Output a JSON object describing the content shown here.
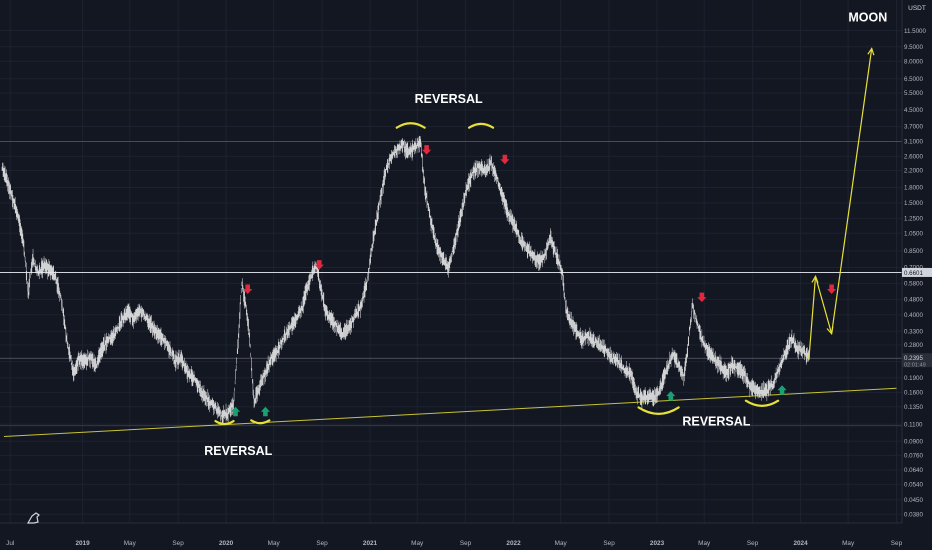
{
  "chart_data": {
    "type": "line",
    "style": "candlestick price chart (log scale) with hand-drawn annotations",
    "quote_currency": "USDT",
    "y_scale": "log",
    "ylim": [
      0.0342,
      16.5
    ],
    "xlim": [
      "2018-06-05",
      "2024-09-15"
    ],
    "grid": true,
    "colors": {
      "background": "#131722",
      "grid": "#1d2230",
      "price": "#e8e8e8",
      "annotation": "#e8e03a",
      "down_arrow": "#e0293e",
      "up_arrow": "#1aa073",
      "text": "#ffffff",
      "axis_text": "#b2b5be"
    },
    "y_ticks": [
      "11.5000",
      "9.5000",
      "8.0000",
      "6.5000",
      "5.5000",
      "4.5000",
      "3.7000",
      "3.1000",
      "2.6000",
      "2.2000",
      "1.8000",
      "1.5000",
      "1.2500",
      "1.0500",
      "0.8500",
      "0.7000",
      "0.5800",
      "0.4800",
      "0.4000",
      "0.3300",
      "0.2800",
      "0.2300",
      "0.1900",
      "0.1600",
      "0.1350",
      "0.1100",
      "0.0900",
      "0.0760",
      "0.0640",
      "0.0540",
      "0.0450",
      "0.0380"
    ],
    "x_ticks": [
      "Jul",
      "2019",
      "May",
      "Sep",
      "2020",
      "May",
      "Sep",
      "2021",
      "May",
      "Sep",
      "2022",
      "May",
      "Sep",
      "2023",
      "May",
      "Sep",
      "2024",
      "May",
      "Sep"
    ],
    "current_price_label": "0.2395",
    "countdown_label": "02:01:49",
    "horizontal_line_label": "0.6601",
    "price_series": [
      {
        "x": "2018-06-10",
        "y": 2.3
      },
      {
        "x": "2018-06-25",
        "y": 1.9
      },
      {
        "x": "2018-07-08",
        "y": 1.55
      },
      {
        "x": "2018-07-22",
        "y": 1.25
      },
      {
        "x": "2018-08-05",
        "y": 0.9
      },
      {
        "x": "2018-08-15",
        "y": 0.52
      },
      {
        "x": "2018-08-28",
        "y": 0.78
      },
      {
        "x": "2018-09-10",
        "y": 0.66
      },
      {
        "x": "2018-09-25",
        "y": 0.72
      },
      {
        "x": "2018-10-10",
        "y": 0.68
      },
      {
        "x": "2018-10-25",
        "y": 0.62
      },
      {
        "x": "2018-11-10",
        "y": 0.45
      },
      {
        "x": "2018-11-25",
        "y": 0.27
      },
      {
        "x": "2018-12-10",
        "y": 0.2
      },
      {
        "x": "2018-12-22",
        "y": 0.24
      },
      {
        "x": "2019-01-05",
        "y": 0.23
      },
      {
        "x": "2019-01-20",
        "y": 0.24
      },
      {
        "x": "2019-02-05",
        "y": 0.22
      },
      {
        "x": "2019-02-20",
        "y": 0.27
      },
      {
        "x": "2019-03-10",
        "y": 0.3
      },
      {
        "x": "2019-03-25",
        "y": 0.32
      },
      {
        "x": "2019-04-10",
        "y": 0.37
      },
      {
        "x": "2019-04-25",
        "y": 0.42
      },
      {
        "x": "2019-05-10",
        "y": 0.38
      },
      {
        "x": "2019-05-25",
        "y": 0.42
      },
      {
        "x": "2019-06-10",
        "y": 0.39
      },
      {
        "x": "2019-06-25",
        "y": 0.35
      },
      {
        "x": "2019-07-10",
        "y": 0.32
      },
      {
        "x": "2019-07-25",
        "y": 0.3
      },
      {
        "x": "2019-08-10",
        "y": 0.27
      },
      {
        "x": "2019-08-25",
        "y": 0.23
      },
      {
        "x": "2019-09-10",
        "y": 0.24
      },
      {
        "x": "2019-09-25",
        "y": 0.2
      },
      {
        "x": "2019-10-10",
        "y": 0.19
      },
      {
        "x": "2019-10-25",
        "y": 0.17
      },
      {
        "x": "2019-11-10",
        "y": 0.15
      },
      {
        "x": "2019-11-25",
        "y": 0.14
      },
      {
        "x": "2019-12-10",
        "y": 0.13
      },
      {
        "x": "2019-12-22",
        "y": 0.12
      },
      {
        "x": "2020-01-05",
        "y": 0.125
      },
      {
        "x": "2020-01-20",
        "y": 0.14
      },
      {
        "x": "2020-02-01",
        "y": 0.3
      },
      {
        "x": "2020-02-10",
        "y": 0.58
      },
      {
        "x": "2020-02-20",
        "y": 0.45
      },
      {
        "x": "2020-03-01",
        "y": 0.3
      },
      {
        "x": "2020-03-12",
        "y": 0.14
      },
      {
        "x": "2020-03-25",
        "y": 0.17
      },
      {
        "x": "2020-04-10",
        "y": 0.2
      },
      {
        "x": "2020-04-25",
        "y": 0.24
      },
      {
        "x": "2020-05-10",
        "y": 0.26
      },
      {
        "x": "2020-05-25",
        "y": 0.3
      },
      {
        "x": "2020-06-10",
        "y": 0.34
      },
      {
        "x": "2020-06-25",
        "y": 0.38
      },
      {
        "x": "2020-07-10",
        "y": 0.42
      },
      {
        "x": "2020-07-25",
        "y": 0.55
      },
      {
        "x": "2020-08-10",
        "y": 0.68
      },
      {
        "x": "2020-08-18",
        "y": 0.72
      },
      {
        "x": "2020-08-28",
        "y": 0.55
      },
      {
        "x": "2020-09-10",
        "y": 0.42
      },
      {
        "x": "2020-09-25",
        "y": 0.38
      },
      {
        "x": "2020-10-10",
        "y": 0.34
      },
      {
        "x": "2020-10-25",
        "y": 0.32
      },
      {
        "x": "2020-11-10",
        "y": 0.35
      },
      {
        "x": "2020-11-25",
        "y": 0.4
      },
      {
        "x": "2020-12-10",
        "y": 0.45
      },
      {
        "x": "2020-12-25",
        "y": 0.6
      },
      {
        "x": "2021-01-10",
        "y": 1.0
      },
      {
        "x": "2021-01-25",
        "y": 1.5
      },
      {
        "x": "2021-02-10",
        "y": 2.2
      },
      {
        "x": "2021-02-25",
        "y": 2.6
      },
      {
        "x": "2021-03-10",
        "y": 2.8
      },
      {
        "x": "2021-03-25",
        "y": 3.0
      },
      {
        "x": "2021-04-10",
        "y": 2.7
      },
      {
        "x": "2021-04-25",
        "y": 2.9
      },
      {
        "x": "2021-05-10",
        "y": 3.1
      },
      {
        "x": "2021-05-20",
        "y": 1.8
      },
      {
        "x": "2021-06-05",
        "y": 1.2
      },
      {
        "x": "2021-06-20",
        "y": 0.9
      },
      {
        "x": "2021-07-05",
        "y": 0.78
      },
      {
        "x": "2021-07-20",
        "y": 0.7
      },
      {
        "x": "2021-08-05",
        "y": 0.95
      },
      {
        "x": "2021-08-20",
        "y": 1.3
      },
      {
        "x": "2021-09-05",
        "y": 1.8
      },
      {
        "x": "2021-09-20",
        "y": 2.2
      },
      {
        "x": "2021-10-05",
        "y": 2.3
      },
      {
        "x": "2021-10-20",
        "y": 2.2
      },
      {
        "x": "2021-11-05",
        "y": 2.4
      },
      {
        "x": "2021-11-20",
        "y": 2.0
      },
      {
        "x": "2021-12-05",
        "y": 1.6
      },
      {
        "x": "2021-12-20",
        "y": 1.3
      },
      {
        "x": "2022-01-05",
        "y": 1.15
      },
      {
        "x": "2022-01-20",
        "y": 0.95
      },
      {
        "x": "2022-02-05",
        "y": 0.88
      },
      {
        "x": "2022-02-20",
        "y": 0.8
      },
      {
        "x": "2022-03-05",
        "y": 0.75
      },
      {
        "x": "2022-03-20",
        "y": 0.78
      },
      {
        "x": "2022-04-05",
        "y": 1.0
      },
      {
        "x": "2022-04-20",
        "y": 0.8
      },
      {
        "x": "2022-05-05",
        "y": 0.65
      },
      {
        "x": "2022-05-15",
        "y": 0.42
      },
      {
        "x": "2022-05-25",
        "y": 0.38
      },
      {
        "x": "2022-06-10",
        "y": 0.33
      },
      {
        "x": "2022-06-25",
        "y": 0.3
      },
      {
        "x": "2022-07-10",
        "y": 0.31
      },
      {
        "x": "2022-07-25",
        "y": 0.29
      },
      {
        "x": "2022-08-10",
        "y": 0.28
      },
      {
        "x": "2022-08-25",
        "y": 0.26
      },
      {
        "x": "2022-09-10",
        "y": 0.24
      },
      {
        "x": "2022-09-25",
        "y": 0.23
      },
      {
        "x": "2022-10-10",
        "y": 0.21
      },
      {
        "x": "2022-10-25",
        "y": 0.2
      },
      {
        "x": "2022-11-10",
        "y": 0.16
      },
      {
        "x": "2022-11-25",
        "y": 0.15
      },
      {
        "x": "2022-12-10",
        "y": 0.155
      },
      {
        "x": "2022-12-25",
        "y": 0.15
      },
      {
        "x": "2023-01-10",
        "y": 0.17
      },
      {
        "x": "2023-01-25",
        "y": 0.21
      },
      {
        "x": "2023-02-10",
        "y": 0.25
      },
      {
        "x": "2023-02-25",
        "y": 0.22
      },
      {
        "x": "2023-03-10",
        "y": 0.19
      },
      {
        "x": "2023-03-20",
        "y": 0.27
      },
      {
        "x": "2023-04-01",
        "y": 0.45
      },
      {
        "x": "2023-04-10",
        "y": 0.38
      },
      {
        "x": "2023-04-25",
        "y": 0.3
      },
      {
        "x": "2023-05-10",
        "y": 0.26
      },
      {
        "x": "2023-05-25",
        "y": 0.24
      },
      {
        "x": "2023-06-10",
        "y": 0.22
      },
      {
        "x": "2023-06-25",
        "y": 0.2
      },
      {
        "x": "2023-07-10",
        "y": 0.22
      },
      {
        "x": "2023-07-25",
        "y": 0.21
      },
      {
        "x": "2023-08-10",
        "y": 0.2
      },
      {
        "x": "2023-08-25",
        "y": 0.17
      },
      {
        "x": "2023-09-10",
        "y": 0.165
      },
      {
        "x": "2023-09-25",
        "y": 0.16
      },
      {
        "x": "2023-10-10",
        "y": 0.165
      },
      {
        "x": "2023-10-25",
        "y": 0.18
      },
      {
        "x": "2023-11-10",
        "y": 0.22
      },
      {
        "x": "2023-11-25",
        "y": 0.26
      },
      {
        "x": "2023-12-10",
        "y": 0.3
      },
      {
        "x": "2023-12-25",
        "y": 0.27
      },
      {
        "x": "2024-01-10",
        "y": 0.26
      },
      {
        "x": "2024-01-25",
        "y": 0.2395
      }
    ],
    "annotations": {
      "texts": [
        {
          "label": "MOON",
          "x": "2024-06-20",
          "y": 12.8
        },
        {
          "label": "REVERSAL",
          "x": "2021-07-20",
          "y": 4.9
        },
        {
          "label": "REVERSAL",
          "x": "2020-02-01",
          "y": 0.0765
        },
        {
          "label": "REVERSAL",
          "x": "2023-06-01",
          "y": 0.108
        }
      ],
      "support_line": {
        "from": {
          "x": "2018-06-15",
          "y": 0.095
        },
        "to": {
          "x": "2024-09-01",
          "y": 0.168
        }
      },
      "horizontal_lines": [
        0.6601,
        0.2395,
        3.1,
        0.108
      ],
      "projection_path": [
        {
          "x": "2024-01-22",
          "y": 0.234
        },
        {
          "x": "2024-02-08",
          "y": 0.63
        },
        {
          "x": "2024-03-20",
          "y": 0.32
        },
        {
          "x": "2024-06-30",
          "y": 9.3
        }
      ],
      "reversal_arcs": [
        {
          "x_start": "2019-12-05",
          "x_end": "2020-01-20",
          "y": 0.114,
          "shape": "bottom"
        },
        {
          "x_start": "2020-03-05",
          "x_end": "2020-04-20",
          "y": 0.115,
          "shape": "bottom"
        },
        {
          "x_start": "2021-03-10",
          "x_end": "2021-05-20",
          "y": 3.65,
          "shape": "top"
        },
        {
          "x_start": "2021-09-10",
          "x_end": "2021-11-10",
          "y": 3.65,
          "shape": "top"
        },
        {
          "x_start": "2022-11-15",
          "x_end": "2023-02-25",
          "y": 0.134,
          "shape": "bottom"
        },
        {
          "x_start": "2023-08-15",
          "x_end": "2023-11-05",
          "y": 0.145,
          "shape": "bottom"
        }
      ],
      "down_arrows": [
        {
          "x": "2021-05-25",
          "y": 2.8
        },
        {
          "x": "2021-12-10",
          "y": 2.5
        },
        {
          "x": "2020-02-25",
          "y": 0.54
        },
        {
          "x": "2020-08-25",
          "y": 0.72
        },
        {
          "x": "2023-04-25",
          "y": 0.49
        },
        {
          "x": "2024-03-20",
          "y": 0.54
        }
      ],
      "up_arrows": [
        {
          "x": "2020-01-25",
          "y": 0.128
        },
        {
          "x": "2020-04-10",
          "y": 0.128
        },
        {
          "x": "2023-02-05",
          "y": 0.154
        },
        {
          "x": "2023-11-15",
          "y": 0.165
        }
      ]
    }
  }
}
